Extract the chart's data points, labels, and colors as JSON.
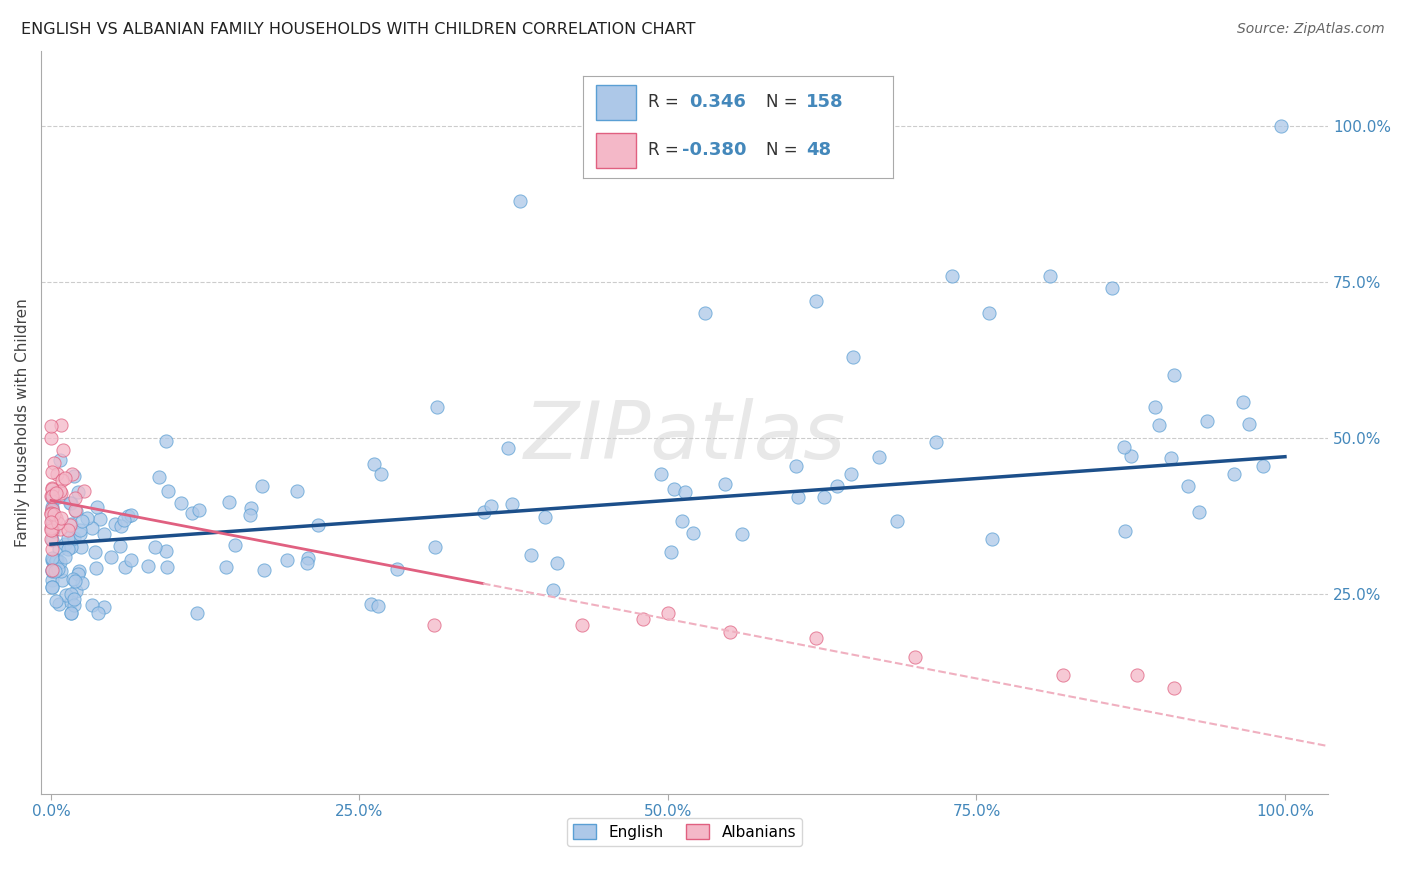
{
  "title": "ENGLISH VS ALBANIAN FAMILY HOUSEHOLDS WITH CHILDREN CORRELATION CHART",
  "source": "Source: ZipAtlas.com",
  "ylabel": "Family Households with Children",
  "ytick_values": [
    0.25,
    0.5,
    0.75,
    1.0
  ],
  "ytick_labels": [
    "25.0%",
    "50.0%",
    "75.0%",
    "100.0%"
  ],
  "xtick_values": [
    0.0,
    0.25,
    0.5,
    0.75,
    1.0
  ],
  "xtick_labels": [
    "0.0%",
    "25.0%",
    "50.0%",
    "75.0%",
    "100.0%"
  ],
  "english_fill_color": "#adc8e8",
  "english_edge_color": "#5a9fd4",
  "albanian_fill_color": "#f4b8c8",
  "albanian_edge_color": "#e06080",
  "english_line_color": "#1c4f8a",
  "albanian_solid_color": "#e06080",
  "albanian_dash_color": "#f0b0c0",
  "r_english": 0.346,
  "n_english": 158,
  "r_albanian": -0.38,
  "n_albanian": 48,
  "watermark": "ZIPatlas",
  "background_color": "#ffffff",
  "grid_color": "#cccccc",
  "title_color": "#222222",
  "source_color": "#666666",
  "tick_label_color": "#4488bb"
}
